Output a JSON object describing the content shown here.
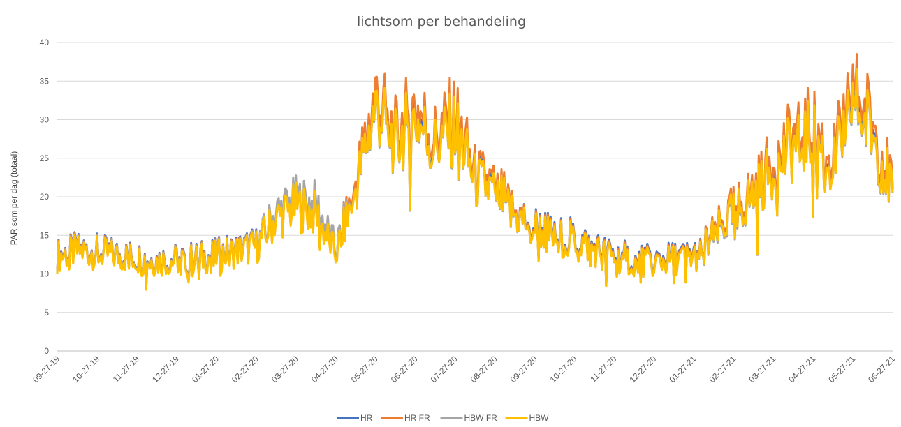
{
  "chart_data": {
    "type": "line",
    "title": "lichtsom per behandeling",
    "xlabel": "",
    "ylabel": "PAR som per dag (totaal)",
    "ylim": [
      0,
      40
    ],
    "yticks": [
      0,
      5,
      10,
      15,
      20,
      25,
      30,
      35,
      40
    ],
    "grid": "horizontal",
    "legend_position": "bottom",
    "x_tick_labels": [
      "09-27-19",
      "10-27-19",
      "11-27-19",
      "12-27-19",
      "01-27-20",
      "02-27-20",
      "03-27-20",
      "04-27-20",
      "05-27-20",
      "06-27-20",
      "07-27-20",
      "08-27-20",
      "09-27-20",
      "10-27-20",
      "11-27-20",
      "12-27-20",
      "01-27-21",
      "02-27-21",
      "03-27-21",
      "04-27-21",
      "05-27-21",
      "06-27-21"
    ],
    "x": [
      "09-27-19",
      "10-12-19",
      "10-27-19",
      "11-11-19",
      "11-27-19",
      "12-12-19",
      "12-27-19",
      "01-11-20",
      "01-27-20",
      "02-11-20",
      "02-27-20",
      "03-12-20",
      "03-27-20",
      "04-11-20",
      "04-27-20",
      "05-12-20",
      "05-27-20",
      "06-11-20",
      "06-27-20",
      "07-12-20",
      "07-27-20",
      "08-11-20",
      "08-27-20",
      "09-11-20",
      "09-27-20",
      "10-12-20",
      "10-27-20",
      "11-11-20",
      "11-27-20",
      "12-12-20",
      "12-27-20",
      "01-11-21",
      "01-27-21",
      "02-11-21",
      "02-27-21",
      "03-12-21",
      "03-27-21",
      "04-11-21",
      "04-27-21",
      "05-12-21",
      "05-27-21",
      "06-11-21",
      "06-27-21"
    ],
    "series": [
      {
        "name": "HR",
        "color": "#4472C4",
        "values": [
          12.5,
          13.2,
          13.0,
          12.6,
          12.3,
          11.9,
          12.0,
          12.2,
          12.6,
          13.2,
          13.8,
          17.5,
          19.0,
          18.2,
          13.0,
          21.5,
          32.5,
          27.5,
          31.0,
          27.0,
          30.0,
          22.5,
          21.0,
          18.0,
          16.5,
          15.0,
          14.8,
          13.5,
          12.5,
          12.0,
          11.8,
          12.2,
          12.5,
          15.0,
          18.0,
          20.5,
          24.0,
          27.0,
          28.5,
          24.0,
          33.5,
          29.0,
          21.0
        ]
      },
      {
        "name": "HR FR",
        "color": "#ED7D31",
        "values": [
          12.4,
          13.1,
          12.9,
          12.5,
          12.2,
          11.8,
          11.9,
          12.1,
          12.5,
          13.1,
          13.7,
          17.3,
          18.8,
          18.0,
          12.8,
          22.0,
          33.5,
          28.5,
          32.0,
          28.0,
          31.0,
          23.0,
          21.5,
          18.0,
          16.3,
          14.8,
          14.6,
          13.3,
          12.3,
          11.8,
          11.6,
          12.0,
          12.3,
          15.2,
          18.5,
          21.0,
          25.0,
          28.0,
          29.5,
          25.0,
          35.0,
          30.0,
          21.5
        ]
      },
      {
        "name": "HBW FR",
        "color": "#A5A5A5",
        "values": [
          12.3,
          13.0,
          12.8,
          12.4,
          12.1,
          11.7,
          11.8,
          12.0,
          12.4,
          13.0,
          13.6,
          18.0,
          19.5,
          19.0,
          13.2,
          21.0,
          31.5,
          26.8,
          30.0,
          26.5,
          29.0,
          22.0,
          20.5,
          17.5,
          16.0,
          14.6,
          14.4,
          13.1,
          12.1,
          11.6,
          11.4,
          11.8,
          12.1,
          14.5,
          17.5,
          20.0,
          23.5,
          26.5,
          28.0,
          23.5,
          32.5,
          28.0,
          20.5
        ]
      },
      {
        "name": "HBW",
        "color": "#FFC000",
        "values": [
          12.2,
          12.9,
          12.7,
          12.3,
          12.0,
          11.6,
          11.7,
          11.9,
          12.3,
          12.9,
          13.5,
          17.2,
          18.7,
          17.8,
          12.5,
          21.0,
          31.8,
          27.0,
          30.2,
          26.5,
          29.2,
          22.0,
          20.6,
          17.6,
          16.0,
          14.6,
          14.4,
          13.1,
          12.1,
          11.6,
          11.4,
          11.8,
          12.1,
          14.8,
          17.8,
          20.2,
          23.5,
          26.5,
          28.0,
          23.5,
          32.8,
          28.3,
          20.6
        ]
      }
    ]
  }
}
